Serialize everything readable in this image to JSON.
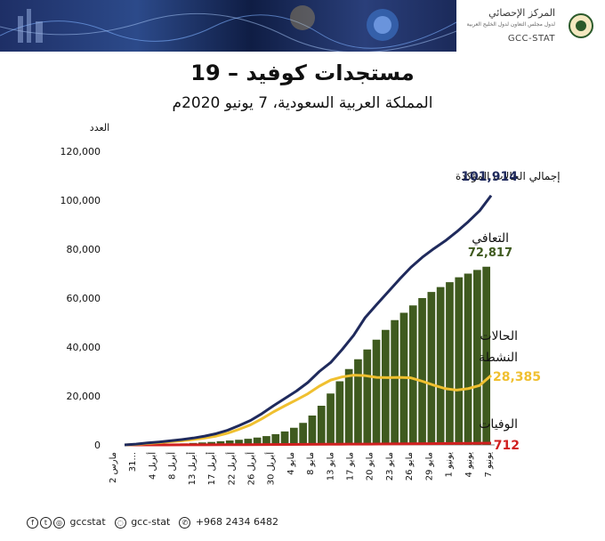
{
  "header": {
    "logo_ar": "المركز الإحصائي",
    "logo_sub": "لدول مجلس التعاون لدول الخليج العربية",
    "logo_en": "GCC-STAT"
  },
  "footer": {
    "social_handle": "gccstat",
    "snap_handle": "gcc-stat",
    "whatsapp": "+968 2434 6482"
  },
  "colors": {
    "confirmed": "#1f2a5c",
    "recovered": "#3f5a1f",
    "active": "#f0c030",
    "deaths": "#d02020"
  },
  "chart_data": {
    "type": "line",
    "title": "مستجدات كوفيد – 19",
    "subtitle": "المملكة العربية السعودية، 7 يونيو 2020م",
    "ylabel": "العدد",
    "ylim": [
      0,
      120000
    ],
    "yticks": [
      "0",
      "20,000",
      "40,000",
      "60,000",
      "80,000",
      "100,000",
      "120,000"
    ],
    "xtick_labels": [
      "2 مارس",
      "31...",
      "4 أبريل",
      "8 أبريل",
      "13 أبريل",
      "17 أبريل",
      "22 أبريل",
      "26 أبريل",
      "30 أبريل",
      "4 مايو",
      "8 مايو",
      "13 مايو",
      "17 مايو",
      "20 مايو",
      "23 مايو",
      "26 مايو",
      "29 مايو",
      "1 يونيو",
      "4 يونيو",
      "7 يونيو"
    ],
    "grid": false,
    "series": [
      {
        "name": "إجمالي الحالات المؤكدة",
        "last_label": "101,914",
        "type": "line",
        "values": [
          0,
          300,
          800,
          1200,
          1700,
          2200,
          2800,
          3600,
          4600,
          6000,
          7900,
          10000,
          12800,
          16000,
          19000,
          22000,
          25500,
          30000,
          33700,
          39000,
          44800,
          52000,
          57300,
          62500,
          67700,
          72600,
          76700,
          80200,
          83400,
          87100,
          91200,
          95700,
          101914
        ]
      },
      {
        "name": "التعافي",
        "last_label": "72,817",
        "type": "bar",
        "values": [
          0,
          100,
          200,
          300,
          400,
          500,
          600,
          800,
          1000,
          1200,
          1500,
          1800,
          2100,
          2500,
          3000,
          3600,
          4400,
          5500,
          7000,
          9000,
          12000,
          16000,
          21000,
          26000,
          31000,
          35000,
          39000,
          43000,
          47000,
          51000,
          54000,
          57000,
          60000,
          62500,
          64500,
          66500,
          68500,
          70000,
          71500,
          72817
        ]
      },
      {
        "name": "الحالات النشطة",
        "last_label": "28,385",
        "type": "line",
        "values": [
          0,
          200,
          600,
          900,
          1300,
          1700,
          2200,
          2800,
          3600,
          4800,
          6400,
          8200,
          10700,
          13500,
          16000,
          18400,
          20900,
          24000,
          26500,
          27800,
          28500,
          28300,
          27600,
          27500,
          27600,
          27400,
          26000,
          24400,
          23000,
          22400,
          23000,
          24300,
          28385
        ]
      },
      {
        "name": "الوفيات",
        "last_label": "712",
        "type": "line",
        "values": [
          0,
          2,
          10,
          30,
          60,
          80,
          110,
          140,
          170,
          210,
          260,
          300,
          340,
          400,
          460,
          520,
          590,
          650,
          712
        ]
      }
    ]
  }
}
